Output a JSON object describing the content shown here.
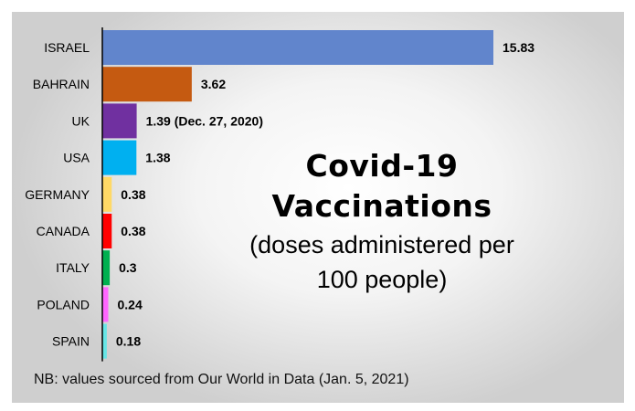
{
  "chart_data": {
    "type": "bar",
    "orientation": "horizontal",
    "categories": [
      "ISRAEL",
      "BAHRAIN",
      "UK",
      "USA",
      "GERMANY",
      "CANADA",
      "ITALY",
      "POLAND",
      "SPAIN"
    ],
    "values": [
      15.83,
      3.62,
      1.39,
      1.38,
      0.38,
      0.38,
      0.3,
      0.24,
      0.18
    ],
    "data_labels": [
      "15.83",
      "3.62",
      "1.39 (Dec. 27, 2020)",
      "1.38",
      "0.38",
      "0.38",
      "0.3",
      "0.24",
      "0.18"
    ],
    "colors": [
      "#6185cc",
      "#c55a11",
      "#7030a0",
      "#00b0f0",
      "#ffd966",
      "#ff0000",
      "#00b050",
      "#ff66ff",
      "#66e6e6"
    ],
    "xlim": [
      0,
      15.83
    ],
    "grid": false,
    "legend": "none"
  },
  "title": {
    "line1": "Covid-19",
    "line2": "Vaccinations",
    "sub1": "(doses administered per",
    "sub2": "100 people)"
  },
  "footnote": "NB: values sourced from Our World in Data (Jan. 5, 2021)"
}
